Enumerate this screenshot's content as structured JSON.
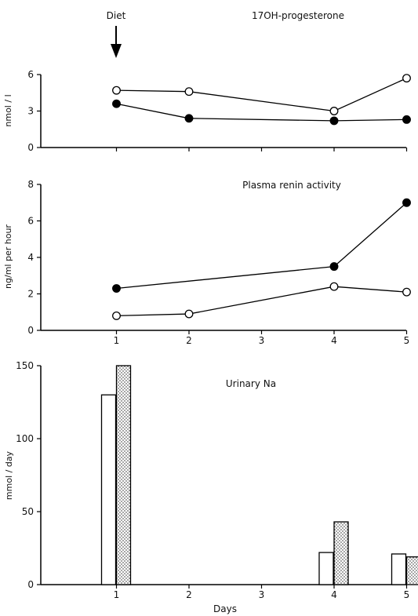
{
  "annotation": {
    "label": "Diet",
    "x": 1
  },
  "x_axis": {
    "label": "Days",
    "ticks": [
      1,
      2,
      3,
      4,
      5
    ]
  },
  "chart_data": [
    {
      "type": "line",
      "title": "17OH-progesterone",
      "xlabel": "",
      "ylabel": "nmol / l",
      "ylim": [
        0,
        6
      ],
      "yticks": [
        0,
        3,
        6
      ],
      "x": [
        1,
        2,
        4,
        5
      ],
      "series": [
        {
          "marker": "open-circle",
          "values": [
            4.7,
            4.6,
            3.0,
            5.7
          ]
        },
        {
          "marker": "filled-circle",
          "values": [
            3.6,
            2.4,
            2.2,
            2.3
          ]
        }
      ]
    },
    {
      "type": "line",
      "title": "Plasma renin activity",
      "xlabel": "",
      "ylabel": "ng/ml per hour",
      "ylim": [
        0,
        8
      ],
      "yticks": [
        0,
        2,
        4,
        6,
        8
      ],
      "x": [
        1,
        2,
        4,
        5
      ],
      "series": [
        {
          "marker": "filled-circle",
          "x": [
            1,
            4,
            5
          ],
          "values": [
            2.3,
            3.5,
            7.0
          ]
        },
        {
          "marker": "open-circle",
          "x": [
            1,
            2,
            4,
            5
          ],
          "values": [
            0.8,
            0.9,
            2.4,
            2.1
          ]
        }
      ]
    },
    {
      "type": "bar",
      "title": "Urinary Na",
      "xlabel": "Days",
      "ylabel": "mmol / day",
      "ylim": [
        0,
        150
      ],
      "yticks": [
        0,
        50,
        100,
        150
      ],
      "categories": [
        1,
        4,
        5
      ],
      "series": [
        {
          "fill": "open",
          "values": [
            130,
            22,
            21
          ]
        },
        {
          "fill": "stippled",
          "values": [
            150,
            43,
            19
          ]
        }
      ]
    }
  ]
}
